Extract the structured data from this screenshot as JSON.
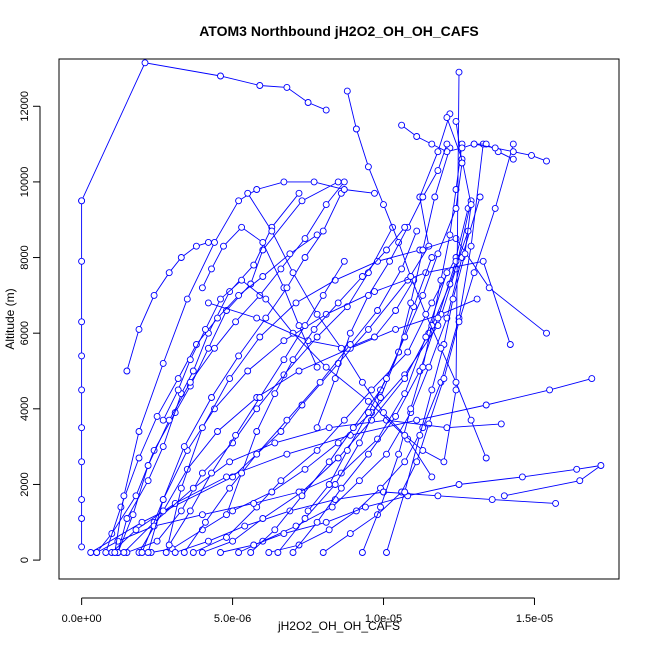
{
  "chart_data": {
    "type": "line",
    "title": "ATOM3 Northbound jH2O2_OH_OH_CAFS",
    "xlabel": "jH2O2_OH_OH_CAFS",
    "ylabel": "Altitude (m)",
    "xlim": [
      -7.5e-07,
      1.78e-05
    ],
    "ylim": [
      -500,
      13250
    ],
    "x_ticks": [
      {
        "value": 0,
        "label": "0.0e+00"
      },
      {
        "value": 5e-06,
        "label": "5.0e-06"
      },
      {
        "value": 1e-05,
        "label": "1.0e-05"
      },
      {
        "value": 1.5e-05,
        "label": "1.5e-05"
      }
    ],
    "y_ticks": [
      {
        "value": 0,
        "label": "0"
      },
      {
        "value": 2000,
        "label": "2000"
      },
      {
        "value": 4000,
        "label": "4000"
      },
      {
        "value": 6000,
        "label": "6000"
      },
      {
        "value": 8000,
        "label": "8000"
      },
      {
        "value": 10000,
        "label": "10000"
      },
      {
        "value": 12000,
        "label": "12000"
      }
    ],
    "grid": false,
    "color": "#0000ff",
    "series": [
      {
        "x": [
          3e-07,
          2e-06,
          5e-06,
          6.6e-06,
          7.3e-06,
          8.5e-06,
          9.5e-06,
          1.08e-05,
          1.15e-05,
          1.12e-05,
          1.18e-05,
          1.22e-05
        ],
        "y": [
          200,
          1000,
          2200,
          3400,
          4100,
          5200,
          6100,
          7400,
          8300,
          9600,
          10800,
          11800
        ]
      },
      {
        "x": [
          5e-07,
          1e-06,
          1.8e-06,
          2.4e-06,
          3.1e-06,
          3.6e-06,
          4.2e-06,
          4.8e-06,
          5.6e-06,
          6e-06,
          7.3e-06,
          8.5e-06
        ],
        "y": [
          200,
          700,
          1700,
          2900,
          3900,
          4600,
          5600,
          6600,
          7300,
          8200,
          9500,
          10000
        ]
      },
      {
        "x": [
          1.2e-06,
          1.5e-06,
          2.2e-06,
          2.7e-06,
          3.3e-06,
          3.7e-06,
          4.2e-06,
          4.9e-06,
          5.7e-06,
          6.3e-06,
          7.2e-06
        ],
        "y": [
          200,
          1100,
          2100,
          3000,
          4400,
          5000,
          6000,
          7100,
          7800,
          8800,
          9700
        ]
      },
      {
        "x": [
          1.5e-06,
          2.5e-06,
          3.3e-06,
          4e-06,
          5e-06,
          5.8e-06,
          6.7e-06,
          7.8e-06,
          8.8e-06,
          9.5e-06,
          1.03e-05
        ],
        "y": [
          200,
          500,
          1300,
          2300,
          3100,
          4000,
          4900,
          5900,
          6700,
          7600,
          8800
        ]
      },
      {
        "x": [
          3.7e-06,
          4.8e-06,
          5.8e-06,
          6.6e-06,
          7.8e-06,
          8.7e-06,
          9.6e-06,
          1.08e-05,
          1.16e-05,
          1.24e-05,
          1.28e-05
        ],
        "y": [
          200,
          600,
          1400,
          2100,
          2900,
          3700,
          4500,
          5500,
          6800,
          8000,
          9300
        ]
      },
      {
        "x": [
          5.2e-06,
          6e-06,
          7.1e-06,
          8.3e-06,
          9.2e-06,
          1.01e-05,
          1.09e-05,
          1.15e-05,
          1.21e-05,
          1.26e-05,
          1.32e-05
        ],
        "y": [
          200,
          500,
          900,
          1400,
          2100,
          2800,
          3900,
          5100,
          6400,
          8000,
          9600
        ]
      },
      {
        "x": [
          6.2e-06,
          7.2e-06,
          8.2e-06,
          9.1e-06,
          9.9e-06,
          1.07e-05,
          1.13e-05,
          1.19e-05,
          1.25e-05,
          1.29e-05,
          1.33e-05
        ],
        "y": [
          200,
          400,
          800,
          1300,
          1900,
          2600,
          3500,
          4700,
          6400,
          8300,
          11000
        ]
      },
      {
        "x": [
          8e-06,
          8.9e-06,
          9.8e-06,
          1.06e-05,
          1.11e-05,
          1.15e-05,
          1.2e-05,
          1.25e-05,
          1.3e-05,
          1.37e-05,
          1.43e-05
        ],
        "y": [
          200,
          700,
          1200,
          1800,
          2600,
          3600,
          4800,
          6300,
          7600,
          9300,
          11000
        ]
      },
      {
        "x": [
          2.3e-06,
          3e-06,
          4e-06,
          5e-06,
          6.3e-06,
          7.4e-06,
          8.5e-06,
          9.6e-06,
          1.07e-05,
          1.18e-05,
          1.24e-05,
          1.29e-05
        ],
        "y": [
          200,
          300,
          800,
          1300,
          1800,
          2400,
          3100,
          3900,
          4900,
          6200,
          7700,
          9500
        ]
      },
      {
        "x": [
          4.6e-06,
          5.7e-06,
          6.7e-06,
          8.1e-06,
          9.4e-06,
          1.08e-05,
          1.25e-05,
          1.46e-05,
          1.64e-05,
          1.72e-05,
          1.65e-05,
          1.4e-05
        ],
        "y": [
          200,
          400,
          700,
          1000,
          1400,
          1700,
          2000,
          2200,
          2400,
          2500,
          2100,
          1700
        ]
      },
      {
        "x": [
          3.1e-06,
          4.2e-06,
          5.4e-06,
          6.9e-06,
          8.4e-06,
          1e-05,
          1.18e-05,
          1.36e-05,
          1.57e-05
        ],
        "y": [
          200,
          500,
          900,
          1300,
          1600,
          1800,
          1700,
          1600,
          1500
        ]
      },
      {
        "x": [
          1e-06,
          1.8e-06,
          3.1e-06,
          4.8e-06,
          6.8e-06,
          8.9e-06,
          1.11e-05,
          1.34e-05,
          1.55e-05,
          1.69e-05
        ],
        "y": [
          200,
          800,
          1500,
          2200,
          2800,
          3300,
          3700,
          4100,
          4500,
          4800
        ]
      },
      {
        "x": [
          1.4e-06,
          2.4e-06,
          3.7e-06,
          4.9e-06,
          6.4e-06,
          8.2e-06,
          1.01e-05,
          1.21e-05,
          1.39e-05
        ],
        "y": [
          200,
          1000,
          1900,
          2600,
          3100,
          3500,
          3700,
          3500,
          3600
        ]
      },
      {
        "x": [
          1.9e-06,
          2.7e-06,
          3.5e-06,
          4.5e-06,
          5.8e-06,
          7.2e-06,
          8.9e-06,
          1.04e-05,
          1.19e-05,
          1.31e-05
        ],
        "y": [
          200,
          1300,
          2400,
          3400,
          4300,
          5000,
          5600,
          6100,
          6500,
          6900
        ]
      },
      {
        "x": [
          2e-06,
          2.7e-06,
          3.5e-06,
          4.4e-06,
          5.5e-06,
          6.7e-06,
          8.1e-06,
          9.7e-06,
          1.14e-05,
          1.33e-05,
          1.42e-05
        ],
        "y": [
          200,
          1600,
          2900,
          4000,
          5000,
          5800,
          6500,
          7100,
          7600,
          7900,
          5700
        ]
      },
      {
        "x": [
          2.8e-06,
          3.3e-06,
          4e-06,
          4.9e-06,
          5.9e-06,
          7.1e-06,
          8.4e-06,
          9.8e-06,
          1.12e-05,
          1.24e-05,
          1.35e-05,
          1.54e-05
        ],
        "y": [
          200,
          1900,
          3500,
          4800,
          5900,
          6800,
          7400,
          7900,
          8200,
          8500,
          7200,
          6000
        ]
      },
      {
        "x": [
          1.2e-06,
          1.7e-06,
          2.2e-06,
          2.9e-06,
          3.6e-06,
          4.4e-06,
          5.1e-06,
          5.9e-06,
          6.6e-06,
          7.4e-06,
          8.1e-06,
          8.7e-06
        ],
        "y": [
          200,
          1200,
          2500,
          3700,
          4700,
          5600,
          6300,
          7000,
          7700,
          8500,
          9400,
          10000
        ]
      },
      {
        "x": [
          8e-07,
          1.3e-06,
          1.9e-06,
          2.5e-06,
          3.2e-06,
          3.8e-06,
          4.5e-06,
          5.2e-06,
          6e-06,
          6.9e-06,
          7.8e-06
        ],
        "y": [
          200,
          1400,
          2700,
          3800,
          4800,
          5700,
          6400,
          7000,
          7500,
          8100,
          8600
        ]
      },
      {
        "x": [
          4e-06,
          5e-06,
          6e-06,
          7.3e-06,
          8.5e-06,
          9.6e-06,
          1.07e-05,
          1.15e-05,
          1.22e-05,
          1.28e-05
        ],
        "y": [
          200,
          500,
          1100,
          1800,
          2700,
          3700,
          4800,
          6000,
          7300,
          8700
        ]
      },
      {
        "x": [
          5e-07,
          1.2e-06,
          2.4e-06,
          4e-06,
          5.7e-06,
          7.2e-06,
          8.6e-06,
          9.8e-06,
          1.07e-05,
          1.14e-05,
          1.21e-05
        ],
        "y": [
          200,
          500,
          900,
          1200,
          1500,
          1800,
          2300,
          3200,
          4400,
          5900,
          7600
        ]
      },
      {
        "x": [
          5.6e-06,
          6.4e-06,
          7.3e-06,
          8.2e-06,
          9e-06,
          9.9e-06,
          1.05e-05,
          1.1e-05,
          1.16e-05
        ],
        "y": [
          200,
          800,
          1700,
          2600,
          3500,
          4500,
          5500,
          6700,
          8000
        ]
      },
      {
        "x": [
          7e-06,
          7.8e-06,
          8.6e-06,
          9.5e-06,
          1.04e-05,
          1.12e-05,
          1.18e-05,
          1.24e-05
        ],
        "y": [
          200,
          1000,
          1900,
          2800,
          3800,
          5000,
          6400,
          7900
        ]
      },
      {
        "x": [
          4e-06,
          4.3e-06,
          4.7e-06,
          5.3e-06,
          6e-06,
          6.7e-06,
          7.2e-06,
          7.8e-06
        ],
        "y": [
          7200,
          7700,
          8300,
          8800,
          8400,
          7200,
          6200,
          5100
        ]
      },
      {
        "x": [
          2.7e-06,
          3.2e-06,
          3.6e-06,
          4.1e-06,
          4.6e-06,
          5.3e-06,
          6.1e-06,
          7e-06,
          8.1e-06,
          9.5e-06,
          1.08e-05,
          1.16e-05
        ],
        "y": [
          3700,
          4500,
          5300,
          6100,
          6900,
          7400,
          6900,
          6000,
          5100,
          4200,
          3200,
          2200
        ]
      },
      {
        "x": [
          1.5e-06,
          1.9e-06,
          2.4e-06,
          2.9e-06,
          3.3e-06,
          3.8e-06,
          4.2e-06
        ],
        "y": [
          5000,
          6100,
          7000,
          7600,
          8000,
          8300,
          8400
        ]
      },
      {
        "x": [
          4.2e-06,
          5.8e-06,
          7.5e-06,
          8.8e-06,
          9.7e-06,
          1.04e-05,
          1.1e-05
        ],
        "y": [
          6800,
          6400,
          5800,
          5600,
          5900,
          6600,
          7400
        ]
      },
      {
        "x": [
          9.3e-06,
          9.9e-06,
          1.05e-05,
          1.09e-05,
          1.13e-05,
          1.16e-05,
          1.19e-05,
          1.22e-05,
          1.24e-05,
          1.26e-05
        ],
        "y": [
          200,
          1400,
          2800,
          4000,
          5100,
          6200,
          7400,
          8600,
          9800,
          11000
        ]
      },
      {
        "x": [
          1.01e-05,
          1.07e-05,
          1.12e-05,
          1.16e-05,
          1.2e-05,
          1.23e-05,
          1.27e-05,
          1.29e-05,
          1.26e-05,
          1.21e-05
        ],
        "y": [
          200,
          1800,
          3300,
          4500,
          5700,
          6900,
          8100,
          9400,
          10600,
          11700
        ]
      },
      {
        "x": [
          6.5e-06,
          7.4e-06,
          8.4e-06,
          9.2e-06,
          9.9e-06,
          1.05e-05,
          1.09e-05,
          1.13e-05,
          1.17e-05,
          1.22e-05
        ],
        "y": [
          200,
          1100,
          2000,
          3100,
          4300,
          5500,
          6800,
          8200,
          9600,
          10900
        ]
      },
      {
        "x": [
          3.4e-06,
          4.1e-06,
          4.9e-06,
          5.8e-06,
          6.8e-06,
          7.9e-06,
          8.9e-06,
          9.8e-06,
          1.06e-05,
          1.11e-05
        ],
        "y": [
          200,
          1000,
          1900,
          2800,
          3700,
          4700,
          5700,
          6600,
          7700,
          8700
        ]
      },
      {
        "x": [
          2.2e-06,
          2.7e-06,
          3.4e-06,
          4.3e-06,
          5.2e-06,
          6.1e-06,
          6.8e-06,
          7.4e-06,
          8e-06,
          8.6e-06
        ],
        "y": [
          200,
          1600,
          3000,
          4300,
          5400,
          6400,
          7200,
          8000,
          8700,
          9700
        ]
      },
      {
        "x": [
          0,
          0,
          0,
          0,
          0,
          0,
          0,
          0,
          0,
          0,
          0,
          2.1e-06,
          4.6e-06,
          5.9e-06,
          6.8e-06,
          7.5e-06,
          8.1e-06
        ],
        "y": [
          350,
          1100,
          1600,
          2600,
          3500,
          4500,
          5400,
          6300,
          7900,
          9500,
          9500,
          13150,
          12800,
          12550,
          12500,
          12100,
          11900
        ]
      },
      {
        "x": [
          1.1e-06,
          1.4e-06,
          1.9e-06,
          2.7e-06,
          3.5e-06,
          4.4e-06,
          5.2e-06,
          5.8e-06,
          6.7e-06,
          7.7e-06,
          8.7e-06,
          9.7e-06
        ],
        "y": [
          200,
          1700,
          3400,
          5200,
          6900,
          8400,
          9500,
          9800,
          10000,
          10000,
          9800,
          9700
        ]
      },
      {
        "x": [
          5.5e-06,
          6.3e-06,
          7e-06,
          7.8e-06,
          8.6e-06,
          9.3e-06,
          1e-05,
          1.07e-05,
          1.13e-05,
          1.2e-05,
          1.24e-05,
          1.25e-05
        ],
        "y": [
          9700,
          8700,
          7600,
          6500,
          5600,
          4700,
          3900,
          3300,
          2900,
          2600,
          4500,
          12900
        ]
      },
      {
        "x": [
          1.24e-05,
          1.26e-05,
          1.24e-05,
          1.18e-05,
          1.13e-05,
          1.07e-05,
          1.01e-05,
          9.5e-06,
          8.8e-06,
          8.2e-06,
          7.5e-06
        ],
        "y": [
          11600,
          10500,
          9300,
          8100,
          7000,
          5900,
          4800,
          3900,
          2900,
          2000,
          1300
        ]
      },
      {
        "x": [
          8.8e-06,
          9.1e-06,
          9.5e-06,
          1e-05,
          1.05e-05,
          1.09e-05,
          1.14e-05,
          1.19e-05,
          1.24e-05,
          1.29e-05,
          1.34e-05
        ],
        "y": [
          12400,
          11400,
          10400,
          9400,
          8400,
          7500,
          6500,
          5600,
          4700,
          3700,
          2700
        ]
      },
      {
        "x": [
          1.06e-05,
          1.11e-05,
          1.16e-05,
          1.21e-05,
          1.26e-05,
          1.3e-05,
          1.34e-05,
          1.38e-05,
          1.43e-05
        ],
        "y": [
          11500,
          11200,
          11000,
          10800,
          10900,
          11000,
          11000,
          10800,
          10600
        ]
      },
      {
        "x": [
          1.3e-05,
          1.37e-05,
          1.43e-05,
          1.49e-05,
          1.54e-05
        ],
        "y": [
          11000,
          10900,
          10800,
          10700,
          10550
        ]
      },
      {
        "x": [
          7.8e-06,
          8.4e-06,
          8.9e-06,
          9.5e-06,
          1.02e-05,
          1.08e-05,
          1.13e-05,
          1.18e-05,
          1.21e-05
        ],
        "y": [
          3500,
          4800,
          6000,
          7000,
          7900,
          8800,
          9600,
          10300,
          11000
        ]
      },
      {
        "x": [
          4.8e-06,
          5.3e-06,
          5.8e-06,
          6.4e-06,
          7e-06,
          7.7e-06,
          8.5e-06,
          9.3e-06,
          1.01e-05,
          1.07e-05
        ],
        "y": [
          1200,
          2300,
          3400,
          4400,
          5300,
          6100,
          6800,
          7500,
          8200,
          8800
        ]
      },
      {
        "x": [
          2.9e-06,
          3.6e-06,
          4.3e-06,
          5.1e-06,
          5.9e-06,
          6.7e-06,
          7.4e-06,
          8e-06,
          8.7e-06
        ],
        "y": [
          400,
          1300,
          2300,
          3300,
          4300,
          5300,
          6200,
          7000,
          7900
        ]
      }
    ]
  }
}
